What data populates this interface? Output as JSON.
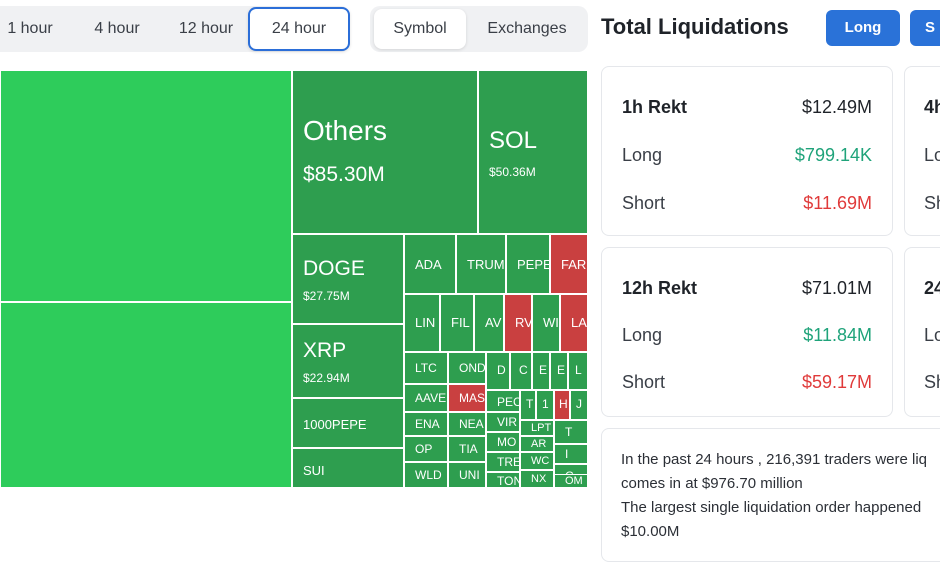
{
  "time_tabs": [
    "1 hour",
    "4 hour",
    "12 hour",
    "24 hour"
  ],
  "active_time_tab": "24 hour",
  "view_tabs": [
    "Symbol",
    "Exchanges"
  ],
  "active_view_tab": "Symbol",
  "header": {
    "title": "Total Liquidations",
    "long_btn": "Long",
    "short_btn": "S"
  },
  "treemap": {
    "others": {
      "symbol": "Others",
      "value": "$85.30M"
    },
    "sol": {
      "symbol": "SOL",
      "value": "$50.36M"
    },
    "doge": {
      "symbol": "DOGE",
      "value": "$27.75M"
    },
    "xrp": {
      "symbol": "XRP",
      "value": "$22.94M"
    },
    "pepe1000": "1000PEPE",
    "sui": "SUI",
    "small": [
      "ADA",
      "TRUM",
      "PEPE",
      "FAR",
      "LIN",
      "FIL",
      "AV",
      "RV",
      "WI",
      "LA",
      "LTC",
      "OND",
      "D",
      "C",
      "E",
      "E",
      "L",
      "AAVE",
      "MAS",
      "PEC",
      "T",
      "1",
      "H",
      "J",
      "ENA",
      "NEA",
      "VIR",
      "LPT",
      "T",
      "OP",
      "TIA",
      "MO",
      "AR",
      "I",
      "WLD",
      "UNI",
      "TRE",
      "WC",
      "C",
      "TON",
      "NX",
      "OM"
    ]
  },
  "cards": [
    {
      "title": "1h Rekt",
      "total": "$12.49M",
      "long_label": "Long",
      "long": "$799.14K",
      "short_label": "Short",
      "short": "$11.69M"
    },
    {
      "title": "12h Rekt",
      "total": "$71.01M",
      "long_label": "Long",
      "long": "$11.84M",
      "short_label": "Short",
      "short": "$59.17M"
    }
  ],
  "cards_right": [
    {
      "title": "4h",
      "long_label": "Lo",
      "short_label": "Sh"
    },
    {
      "title": "24",
      "long_label": "Lo",
      "short_label": "Sh"
    }
  ],
  "summary": {
    "line1": "In the past 24 hours , 216,391 traders were liq",
    "line2": "comes in at $976.70 million",
    "line3": "The largest single liquidation order happened",
    "line4": "$10.00M"
  },
  "colors": {
    "green_big": "#2ecc5b",
    "green": "#2e9e4f",
    "red": "#c94040",
    "accent": "#2a72d8"
  }
}
